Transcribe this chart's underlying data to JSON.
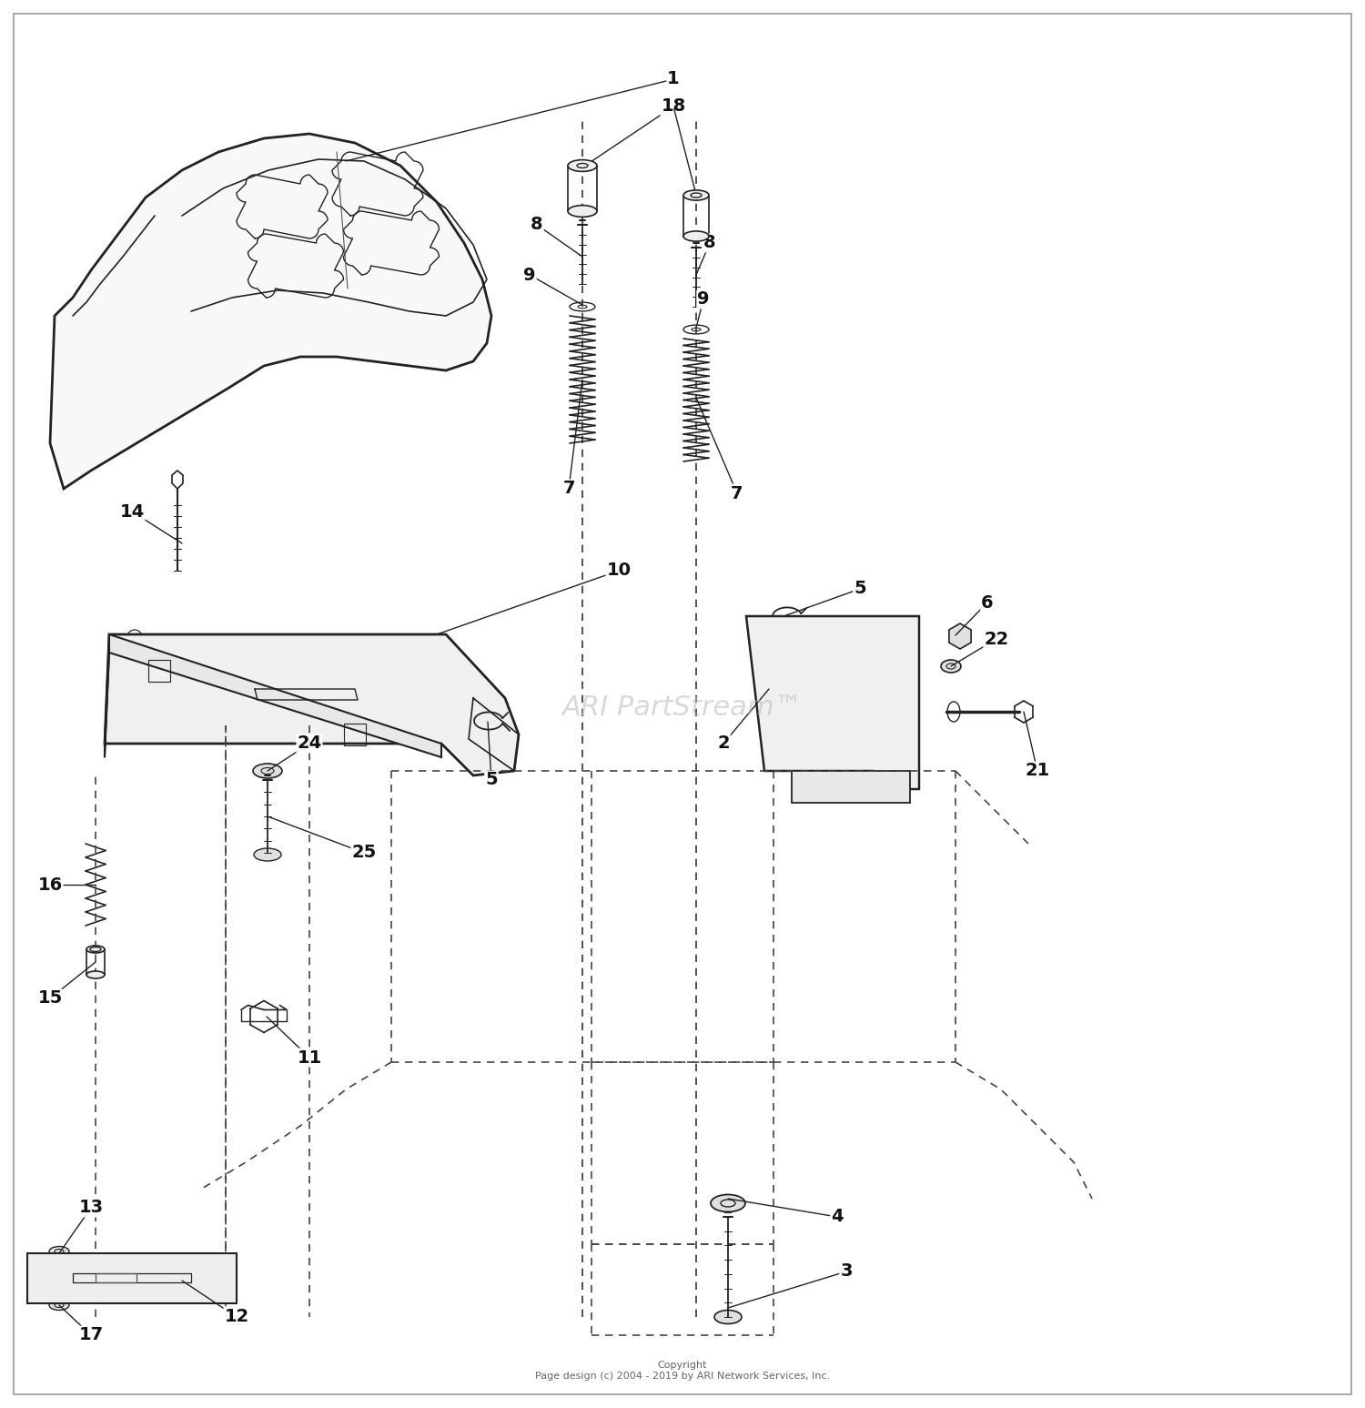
{
  "background_color": "#ffffff",
  "watermark": "ARI PartStream™",
  "copyright": "Copyright\nPage design (c) 2004 - 2019 by ARI Network Services, Inc.",
  "line_color": "#222222",
  "label_fs": 14
}
